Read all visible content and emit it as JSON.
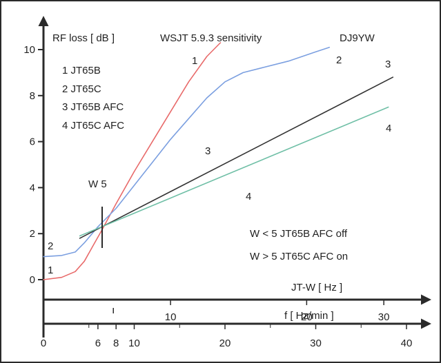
{
  "chart_data": {
    "type": "line",
    "title": "WSJT 5.9.3 sensitivity",
    "author": "DJ9YW",
    "ylabel": "RF loss [ dB ]",
    "ylim": [
      0,
      10.5
    ],
    "yticks": [
      "0",
      "2",
      "4",
      "6",
      "8",
      "10"
    ],
    "x_axes": [
      {
        "label": "JT-W [ Hz ]",
        "ticks": [
          "10",
          "20",
          "30"
        ]
      },
      {
        "label": "f [ Hz/min ]",
        "ticks": [
          "0",
          "6",
          "8",
          "10",
          "20",
          "30",
          "40"
        ],
        "xlim": [
          0,
          41
        ]
      }
    ],
    "legend": [
      "1 JT65B",
      "2 JT65C",
      "3 JT65B AFC",
      "4 JT65C AFC"
    ],
    "series": [
      {
        "name": "1 JT65B",
        "label": "1",
        "color": "#e86a6a",
        "x": [
          0,
          2,
          3.5,
          4.5,
          5.5,
          6.5,
          8,
          10,
          12,
          14,
          16,
          18,
          19.5
        ],
        "y": [
          0,
          0.1,
          0.35,
          0.8,
          1.5,
          2.2,
          3.3,
          4.7,
          6.0,
          7.3,
          8.6,
          9.7,
          10.3
        ]
      },
      {
        "name": "2 JT65C",
        "label": "2",
        "color": "#7b9fe0",
        "x": [
          0,
          2,
          3.5,
          4.5,
          6,
          8,
          10,
          12,
          14,
          16,
          18,
          20,
          22,
          24,
          27,
          30,
          31.5
        ],
        "y": [
          1.0,
          1.05,
          1.2,
          1.6,
          2.3,
          3.1,
          4.1,
          5.1,
          6.1,
          7.0,
          7.9,
          8.6,
          9.0,
          9.2,
          9.5,
          9.9,
          10.1
        ]
      },
      {
        "name": "3 JT65B AFC",
        "label": "3",
        "color": "#333333",
        "x": [
          4,
          38.5
        ],
        "y": [
          1.8,
          8.8
        ]
      },
      {
        "name": "4 JT65C AFC",
        "label": "4",
        "color": "#6fbfa6",
        "x": [
          4,
          38
        ],
        "y": [
          1.9,
          7.5
        ]
      }
    ],
    "annotations": [
      {
        "text": "W 5"
      },
      {
        "text": "W  < 5   JT65B AFC off"
      },
      {
        "text": "W  > 5   JT65C AFC on"
      }
    ],
    "curve_labels": [
      "1",
      "2",
      "3",
      "4"
    ],
    "grid": false
  }
}
